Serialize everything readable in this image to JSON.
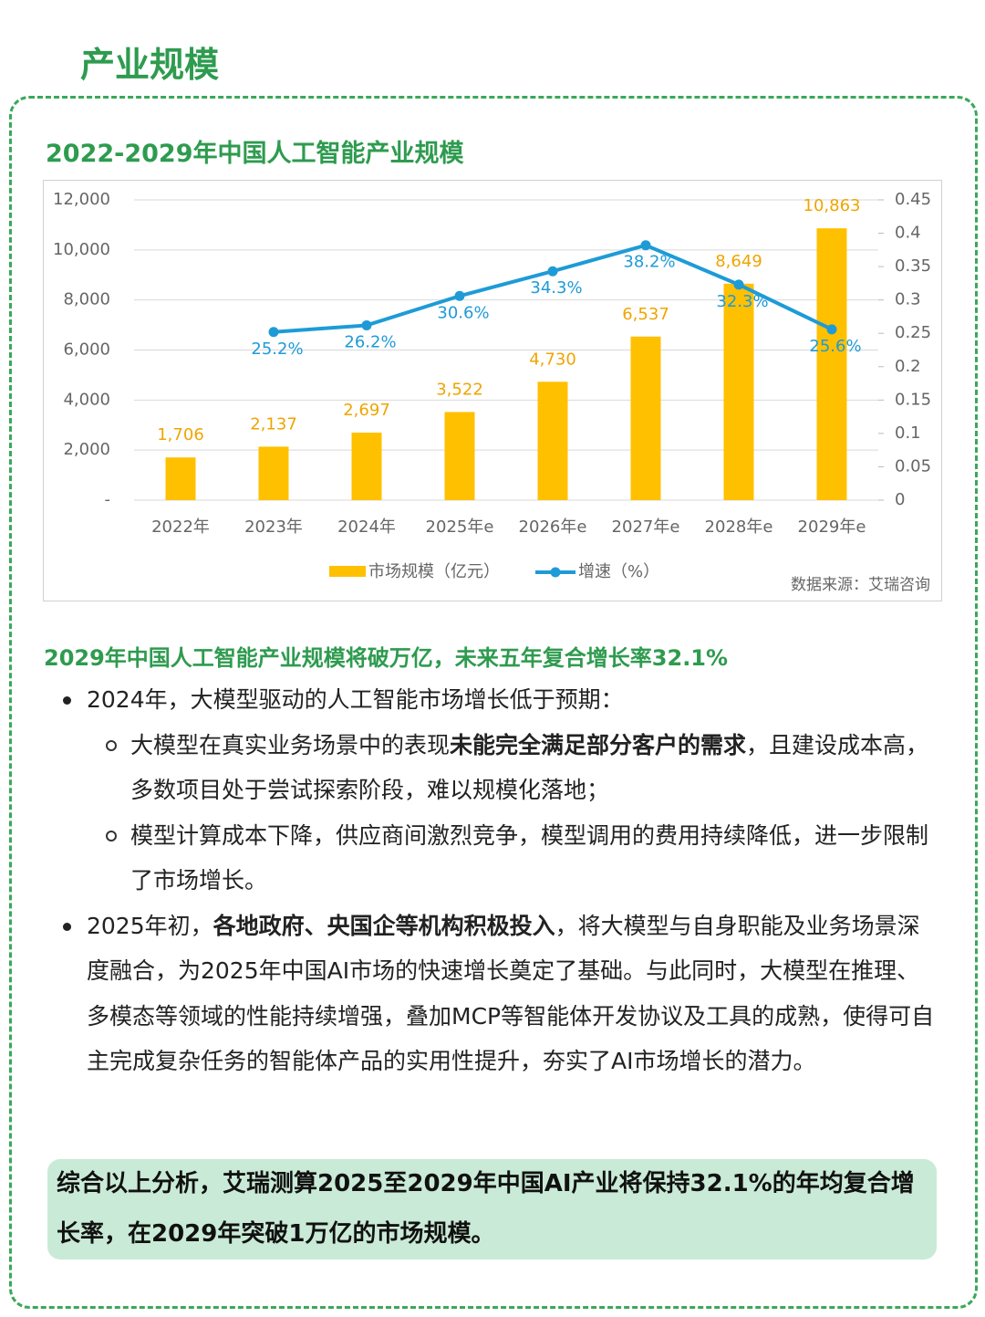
{
  "header": {
    "title": "产业规模"
  },
  "chart_data": {
    "type": "bar-line",
    "title": "2022-2029年中国人工智能产业规模",
    "categories": [
      "2022年",
      "2023年",
      "2024年",
      "2025年e",
      "2026年e",
      "2027年e",
      "2028年e",
      "2029年e"
    ],
    "series": [
      {
        "name": "市场规模（亿元）",
        "color": "#ffc000",
        "label_color": "#f0a400",
        "values": [
          1706,
          2137,
          2697,
          3522,
          4730,
          6537,
          8649,
          10863
        ],
        "value_labels": [
          "1,706",
          "2,137",
          "2,697",
          "3,522",
          "4,730",
          "6,537",
          "8,649",
          "10,863"
        ]
      },
      {
        "name": "增速（%）",
        "color": "#1e9bd7",
        "axis": "y2",
        "values": [
          null,
          0.252,
          0.262,
          0.306,
          0.343,
          0.382,
          0.323,
          0.256
        ],
        "value_labels": [
          null,
          "25.2%",
          "26.2%",
          "30.6%",
          "34.3%",
          "38.2%",
          "32.3%",
          "25.6%"
        ]
      }
    ],
    "ylim": [
      0,
      12000
    ],
    "yticks": [
      {
        "value": 0,
        "label": "-"
      },
      {
        "value": 2000,
        "label": "2,000"
      },
      {
        "value": 4000,
        "label": "4,000"
      },
      {
        "value": 6000,
        "label": "6,000"
      },
      {
        "value": 8000,
        "label": "8,000"
      },
      {
        "value": 10000,
        "label": "10,000"
      },
      {
        "value": 12000,
        "label": "12,000"
      }
    ],
    "y2lim": [
      0,
      0.45
    ],
    "y2ticks": [
      0,
      0.05,
      0.1,
      0.15,
      0.2,
      0.25,
      0.3,
      0.35,
      0.4,
      0.45
    ],
    "source": "数据来源：艾瑞咨询"
  },
  "content": {
    "heading": "2029年中国人工智能产业规模将破万亿，未来五年复合增长率32.1%",
    "bullets": [
      {
        "runs": [
          {
            "text": "2024年，大模型驱动的人工智能市场增长低于预期："
          }
        ],
        "sub": [
          {
            "runs": [
              {
                "text": "大模型在真实业务场景中的表现"
              },
              {
                "text": "未能完全满足部分客户的需求",
                "strong": true
              },
              {
                "text": "，且建设成本高，多数项目处于尝试探索阶段，难以规模化落地；"
              }
            ]
          },
          {
            "runs": [
              {
                "text": "模型计算成本下降，供应商间激烈竞争，模型调用的费用持续降低，进一步限制了市场增长。"
              }
            ]
          }
        ]
      },
      {
        "runs": [
          {
            "text": "2025年初，"
          },
          {
            "text": "各地政府、央国企等机构积极投入",
            "strong": true
          },
          {
            "text": "，将大模型与自身职能及业务场景深度融合，为2025年中国AI市场的快速增长奠定了基础。与此同时，大模型在推理、多模态等领域的性能持续增强，叠加MCP等智能体开发协议及工具的成熟，使得可自主完成复杂任务的智能体产品的实用性提升，夯实了AI市场增长的潜力。"
          }
        ]
      }
    ]
  },
  "summary": "综合以上分析，艾瑞测算2025至2029年中国AI产业将保持32.1%的年均复合增长率，在2029年突破1万亿的市场规模。"
}
